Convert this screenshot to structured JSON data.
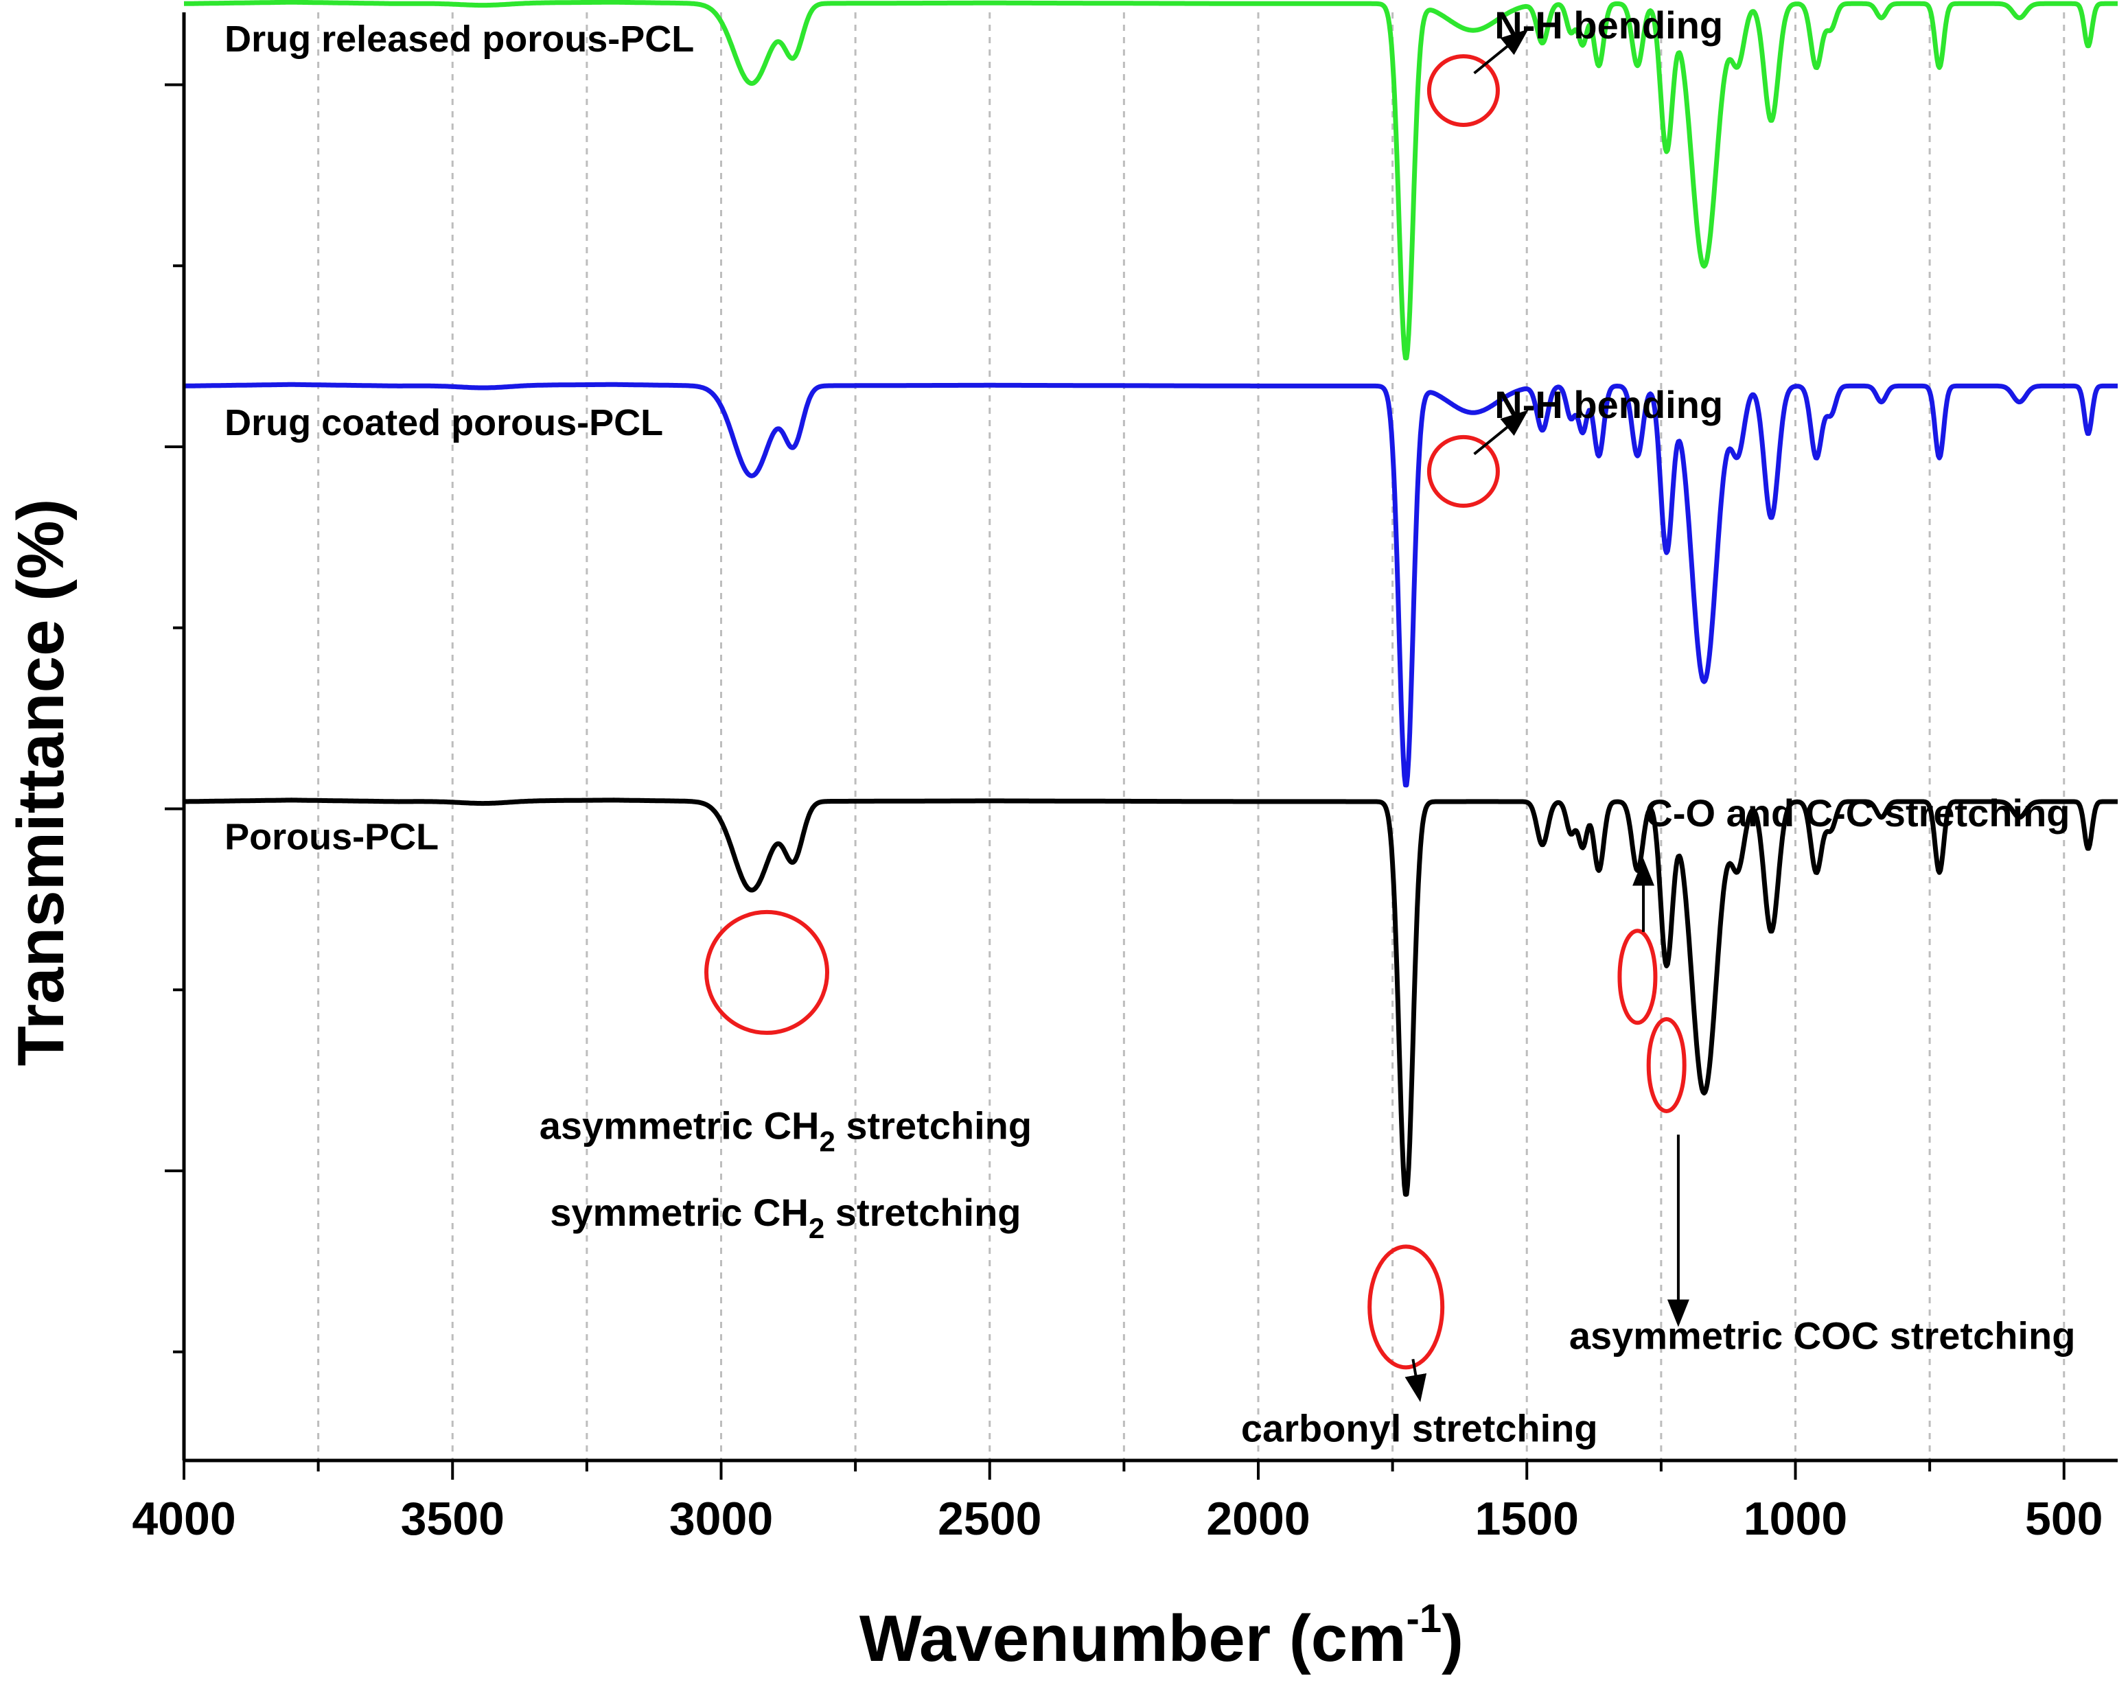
{
  "chart_data": {
    "type": "line",
    "title": "",
    "xlabel": "Wavenumber (cm",
    "xlabel_sup": "-1",
    "xlabel_close": ")",
    "ylabel": "Transmittance (%)",
    "xlim": [
      4000,
      400
    ],
    "x_ticks": [
      4000,
      3500,
      3000,
      2500,
      2000,
      1500,
      1000,
      500
    ],
    "x_tick_labels": [
      "4000",
      "3500",
      "3000",
      "2500",
      "2000",
      "1500",
      "1000",
      "500"
    ],
    "x_minor_ticks": [
      3750,
      3250,
      2750,
      2250,
      1750,
      1250,
      750
    ],
    "ylim": [
      0,
      100
    ],
    "y_ticks": [
      7.5,
      20,
      32.5,
      45,
      57.5,
      70,
      82.5,
      95
    ],
    "y_tick_labels_shown": false,
    "grid": true,
    "series": [
      {
        "name": "Drug released porous-PCL",
        "color": "#2ee62e",
        "offset": 100.6,
        "depth": 24.5,
        "nh_shoulder": 2.3,
        "label_anchor": [
          3950,
          97.3
        ]
      },
      {
        "name": "Drug coated porous-PCL",
        "color": "#1818e6",
        "offset": 74.2,
        "depth": 27.6,
        "nh_shoulder": 2.3,
        "label_anchor": [
          3950,
          70.8
        ]
      },
      {
        "name": "Porous-PCL",
        "color": "#000000",
        "offset": 45.5,
        "depth": 27.2,
        "nh_shoulder": 0,
        "label_anchor": [
          3950,
          42.2
        ]
      }
    ],
    "spectrum_profile": {
      "baseline_points": [
        [
          4000,
          0
        ],
        [
          3800,
          0.1
        ],
        [
          3600,
          0
        ],
        [
          3200,
          0.1
        ],
        [
          3000,
          0
        ],
        [
          2500,
          0.05
        ],
        [
          2000,
          0
        ],
        [
          1800,
          0
        ]
      ],
      "peaks": [
        {
          "center": 3440,
          "depth": 0.006,
          "width": 45
        },
        {
          "center": 2943,
          "depth": 0.225,
          "width": 33
        },
        {
          "center": 2865,
          "depth": 0.14,
          "width": 17
        },
        {
          "center": 1725,
          "depth": 1.0,
          "width": 13
        },
        {
          "center": 1471,
          "depth": 0.11,
          "width": 10
        },
        {
          "center": 1418,
          "depth": 0.08,
          "width": 8
        },
        {
          "center": 1396,
          "depth": 0.115,
          "width": 8
        },
        {
          "center": 1366,
          "depth": 0.175,
          "width": 9
        },
        {
          "center": 1294,
          "depth": 0.175,
          "width": 10
        },
        {
          "center": 1240,
          "depth": 0.41,
          "width": 11
        },
        {
          "center": 1170,
          "depth": 0.74,
          "width": 23
        },
        {
          "center": 1107,
          "depth": 0.16,
          "width": 12
        },
        {
          "center": 1045,
          "depth": 0.33,
          "width": 13
        },
        {
          "center": 961,
          "depth": 0.18,
          "width": 10
        },
        {
          "center": 934,
          "depth": 0.07,
          "width": 9
        },
        {
          "center": 840,
          "depth": 0.04,
          "width": 9
        },
        {
          "center": 732,
          "depth": 0.18,
          "width": 8
        },
        {
          "center": 583,
          "depth": 0.04,
          "width": 12
        },
        {
          "center": 455,
          "depth": 0.12,
          "width": 7
        }
      ],
      "uplift_region": [
        1700,
        1500
      ]
    },
    "annotations": [
      {
        "text": "N-H bending",
        "x": 1560,
        "y": 98.2
      },
      {
        "text": "N-H bending",
        "x": 1560,
        "y": 72.0
      },
      {
        "text": "C-O and C-C stretching",
        "x": 1280,
        "y": 43.8
      },
      {
        "text": "asymmetric CH",
        "sub": "2",
        "tail": " stretching",
        "x": 2880,
        "y": 22.2
      },
      {
        "text": "symmetric CH",
        "sub": "2",
        "tail": " stretching",
        "x": 2880,
        "y": 16.2
      },
      {
        "text": "carbonyl stretching",
        "x": 1700,
        "y": 1.3
      },
      {
        "text": "asymmetric COC stretching",
        "x": 950,
        "y": 7.7
      }
    ],
    "circles": [
      {
        "x": 1618,
        "y": 94.6,
        "rx": 50,
        "ry": 50
      },
      {
        "x": 1618,
        "y": 68.3,
        "rx": 50,
        "ry": 50
      },
      {
        "x": 2915,
        "y": 33.7,
        "rx": 88,
        "ry": 88
      },
      {
        "x": 1294,
        "y": 33.4,
        "rx": 26,
        "ry": 67
      },
      {
        "x": 1240,
        "y": 27.3,
        "rx": 26,
        "ry": 67
      },
      {
        "x": 1725,
        "y": 10.6,
        "rx": 53,
        "ry": 88
      }
    ],
    "circle_color": "#ee1c1c"
  }
}
